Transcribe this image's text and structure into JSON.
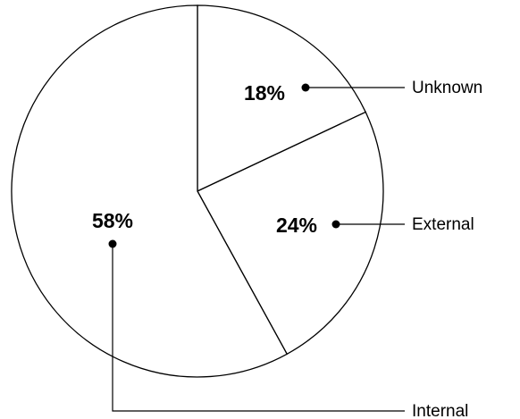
{
  "chart_data": {
    "type": "pie",
    "title": "",
    "legend": "external-callouts-right",
    "slices": [
      {
        "label": "Unknown",
        "value": 18,
        "value_label": "18%"
      },
      {
        "label": "External",
        "value": 24,
        "value_label": "24%"
      },
      {
        "label": "Internal",
        "value": 58,
        "value_label": "58%"
      }
    ],
    "colors": {
      "slice_fill": "#ffffff",
      "stroke": "#000000",
      "text": "#000000"
    }
  }
}
